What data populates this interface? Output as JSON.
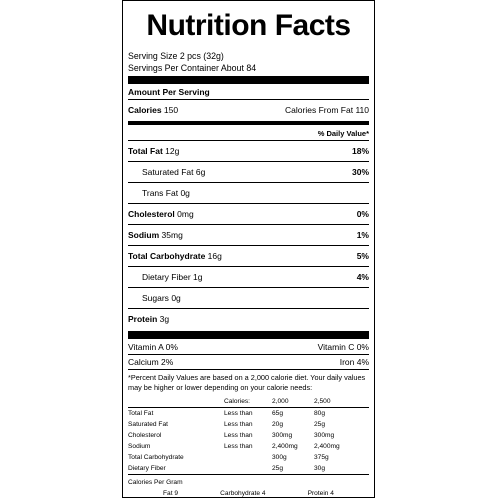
{
  "title": "Nutrition Facts",
  "serving_size": "Serving Size  2 pcs (32g)",
  "servings_per_container": "Servings Per Container About 84",
  "amount_per_serving": "Amount Per Serving",
  "calories_label": "Calories",
  "calories_value": "150",
  "calories_fat_label": "Calories From Fat",
  "calories_fat_value": "110",
  "dv_header": "% Daily Value*",
  "nutrients": [
    {
      "label": "Total Fat",
      "amount": "12g",
      "dv": "18%"
    },
    {
      "label": "Saturated Fat",
      "amount": "6g",
      "dv": "30%"
    },
    {
      "label": "Trans Fat",
      "amount": "0g",
      "dv": ""
    },
    {
      "label": "Cholesterol",
      "amount": "0mg",
      "dv": "0%"
    },
    {
      "label": "Sodium",
      "amount": "35mg",
      "dv": "1%"
    },
    {
      "label": "Total Carbohydrate",
      "amount": "16g",
      "dv": "5%"
    },
    {
      "label": "Dietary Fiber",
      "amount": "1g",
      "dv": "4%"
    },
    {
      "label": "Sugars",
      "amount": "0g",
      "dv": ""
    },
    {
      "label": "Protein",
      "amount": "3g",
      "dv": ""
    }
  ],
  "vitamins": [
    {
      "left": "Vitamin A 0%",
      "right": "Vitamin C 0%"
    },
    {
      "left": "Calcium 2%",
      "right": "Iron 4%"
    }
  ],
  "footnote": "*Percent Daily Values are based on a 2,000 calorie diet. Your daily values may be higher or lower depending on your calorie needs:",
  "footer_table": {
    "header": [
      "",
      "Calories:",
      "2,000",
      "2,500"
    ],
    "rows": [
      [
        "Total Fat",
        "Less than",
        "65g",
        "80g"
      ],
      [
        "Saturated Fat",
        "Less than",
        "20g",
        "25g"
      ],
      [
        "Cholesterol",
        "Less than",
        "300mg",
        "300mg"
      ],
      [
        "Sodium",
        "Less than",
        "2,400mg",
        "2,400mg"
      ],
      [
        "Total Carbohydrate",
        "",
        "300g",
        "375g"
      ],
      [
        "Dietary Fiber",
        "",
        "25g",
        "30g"
      ]
    ]
  },
  "calories_per_gram_label": "Calories Per Gram",
  "calories_per_gram": [
    "Fat 9",
    "Carbohydrate 4",
    "Protein 4"
  ]
}
